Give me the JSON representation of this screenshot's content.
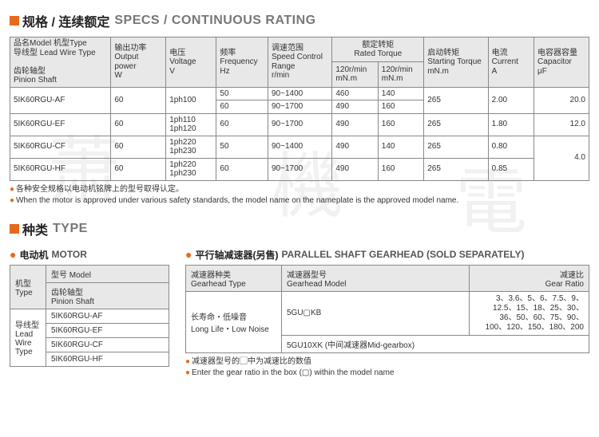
{
  "colors": {
    "accent": "#e66a1e",
    "header_bg": "#e8e8e8",
    "border": "#888"
  },
  "section1": {
    "title_cn": "规格 / 连续额定",
    "title_en": "SPECS / CONTINUOUS RATING"
  },
  "specs_headers": {
    "model": "品名Model  机型Type\n导线型 Lead Wire Type",
    "shaft": "齿轮轴型\nPinion Shaft",
    "power": "输出功率\nOutput power\nW",
    "voltage": "电压\nVoltage\nV",
    "freq": "频率\nFrequency\nHz",
    "speed": "调速范围\nSpeed Control\nRange\nr/min",
    "torque": "额定转矩\nRated Torque",
    "torque_a": "120r/min\nmN.m",
    "torque_b": "120r/min\nmN.m",
    "start": "启动转矩\nStarting Torque\nmN.m",
    "current": "电流\nCurrent\nA",
    "cap": "电容器容量\nCapacitor\nμF"
  },
  "specs_rows": [
    {
      "model": "5IK60RGU-AF",
      "power": "60",
      "voltage": "1ph100",
      "freq": [
        "50",
        "60"
      ],
      "speed": [
        "90~1400",
        "90~1700"
      ],
      "t120a": [
        "460",
        "490"
      ],
      "t120b": [
        "140",
        "160"
      ],
      "start": "265",
      "current": "2.00",
      "cap": "20.0"
    },
    {
      "model": "5IK60RGU-EF",
      "power": "60",
      "voltage": "1ph110\n1ph120",
      "freq": [
        "60"
      ],
      "speed": [
        "90~1700"
      ],
      "t120a": [
        "490"
      ],
      "t120b": [
        "160"
      ],
      "start": "265",
      "current": "1.80",
      "cap": "12.0"
    },
    {
      "model": "5IK60RGU-CF",
      "power": "60",
      "voltage": "1ph220\n1ph230",
      "freq": [
        "50"
      ],
      "speed": [
        "90~1400"
      ],
      "t120a": [
        "490"
      ],
      "t120b": [
        "140"
      ],
      "start": "265",
      "current": "0.80",
      "cap": "4.0",
      "cap_rowspan": 2
    },
    {
      "model": "5IK60RGU-HF",
      "power": "60",
      "voltage": "1ph220\n1ph230",
      "freq": [
        "60"
      ],
      "speed": [
        "90~1700"
      ],
      "t120a": [
        "490"
      ],
      "t120b": [
        "160"
      ],
      "start": "265",
      "current": "0.85",
      "cap": ""
    }
  ],
  "notes": {
    "n1": "各种安全规格以电动机铭牌上的型号取得认定。",
    "n2": "When the motor is approved under various safety standards, the model name on the nameplate is the approved model name."
  },
  "section2": {
    "title_cn": "种类",
    "title_en": "TYPE"
  },
  "motor": {
    "title_cn": "电动机",
    "title_en": "MOTOR",
    "h_type": "机型\nType",
    "h_model": "型号 Model",
    "shaft": "齿轮轴型\nPinion Shaft",
    "lead": "导线型\nLead\nWire\nType",
    "rows": [
      "5IK60RGU-AF",
      "5IK60RGU-EF",
      "5IK60RGU-CF",
      "5IK60RGU-HF"
    ]
  },
  "gear": {
    "title_cn": "平行轴减速器(另售)",
    "title_en": "PARALLEL SHAFT GEARHEAD (SOLD SEPARATELY)",
    "h_type": "减速器种类\nGearhead Type",
    "h_model": "减速器型号\nGearhead Model",
    "h_ratio": "减速比\nGear Ratio",
    "row1_type": "长寿命・低噪音\nLong Life・Low Noise",
    "row1_model": "5GU▢KB",
    "row1_ratio": "3、3.6、5、6、7.5、9、\n12.5、15、18、25、30、\n36、50、60、75、90、\n100、120、150、180、200",
    "row2_model": "5GU10XK (中间减速器Mid-gearbox)",
    "note1": "减速器型号的▢中为减速比的数值",
    "note2": "Enter the gear ratio in the box (▢) within the model name"
  }
}
